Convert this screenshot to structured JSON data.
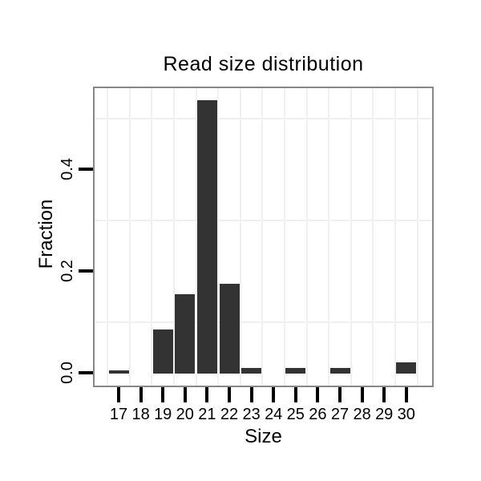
{
  "figure": {
    "title": "Read size distribution",
    "xlabel": "Size",
    "ylabel": "Fraction"
  },
  "chart_data": {
    "type": "bar",
    "title": "Read size distribution",
    "xlabel": "Size",
    "ylabel": "Fraction",
    "categories": [
      "17",
      "18",
      "19",
      "20",
      "21",
      "22",
      "23",
      "24",
      "25",
      "26",
      "27",
      "28",
      "29",
      "30"
    ],
    "values": [
      0.004,
      0,
      0.085,
      0.155,
      0.535,
      0.175,
      0.01,
      0,
      0.01,
      0,
      0.01,
      0,
      0,
      0.02
    ],
    "y_ticks": [
      0.0,
      0.2,
      0.4
    ],
    "y_tick_labels": [
      "0.0",
      "0.2",
      "0.4"
    ],
    "ylim": [
      -0.027,
      0.562
    ],
    "grid": {
      "horizontal_lines": [
        0.1,
        0.3,
        0.5
      ],
      "vertical_lines_at_category_midpoints": true
    },
    "legend": "none",
    "bar_color": "#333333",
    "grid_color": "#f0f0f0",
    "plot_border_color": "#888888",
    "tick_color": "#000000"
  }
}
